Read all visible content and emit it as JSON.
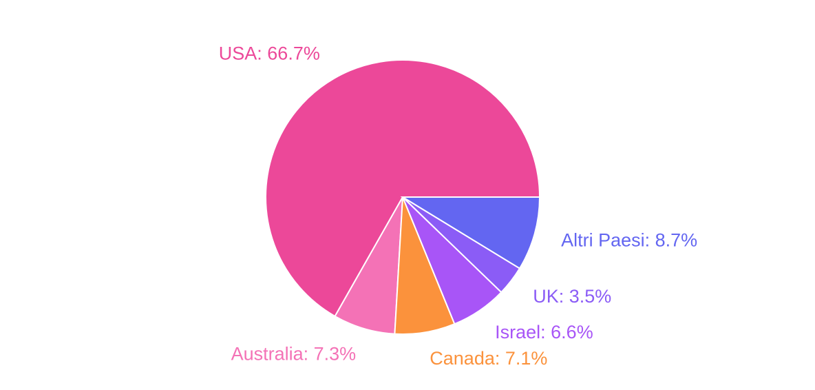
{
  "chart_data": {
    "type": "pie",
    "values": [
      66.7,
      7.3,
      7.1,
      6.6,
      3.5,
      8.7
    ],
    "value_labels": [
      "USA: 66.7%",
      "Australia: 7.3%",
      "Canada: 7.1%",
      "Israel: 6.6%",
      "UK: 3.5%",
      "Altri Paesi: 8.7%"
    ],
    "colors": [
      "#ec4899",
      "#f472b6",
      "#fb923c",
      "#a855f7",
      "#8b5cf6",
      "#6366f1"
    ]
  }
}
